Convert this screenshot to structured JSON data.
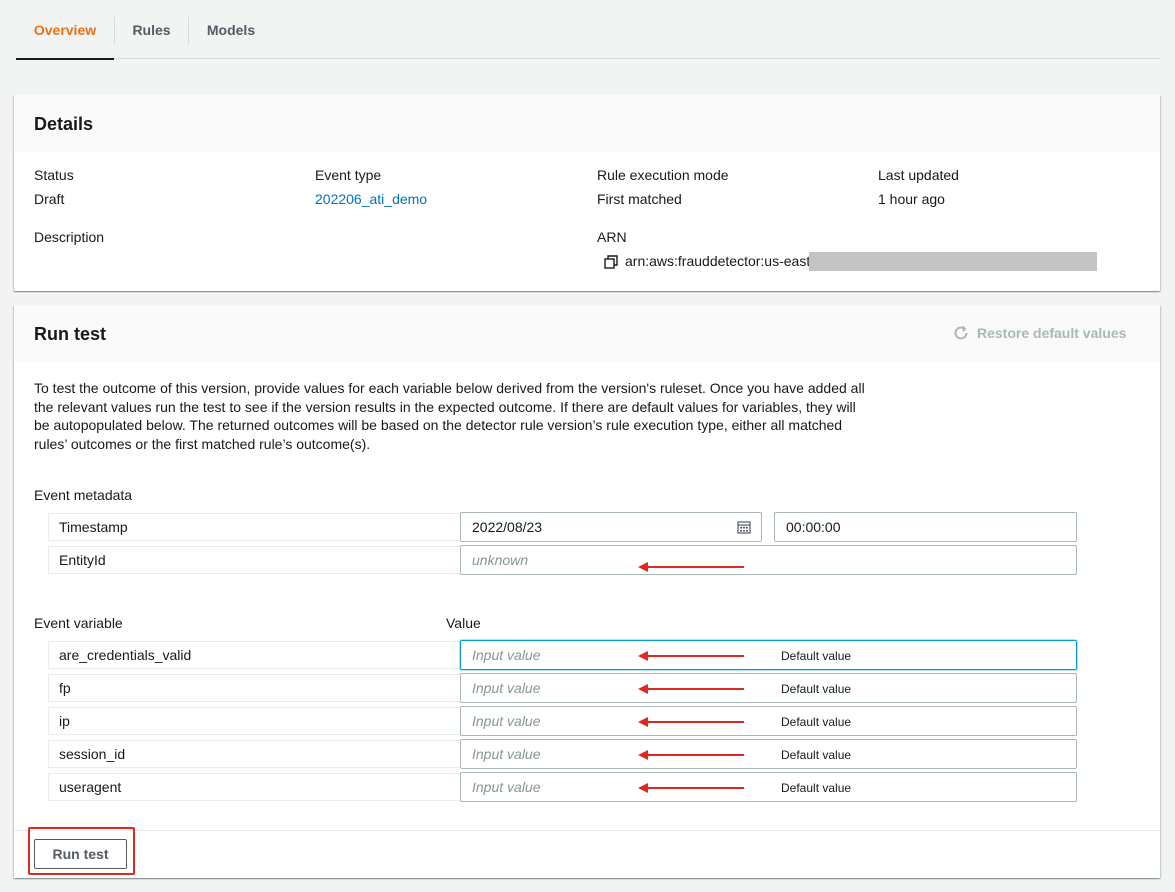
{
  "tabs": [
    {
      "label": "Overview",
      "active": true
    },
    {
      "label": "Rules",
      "active": false
    },
    {
      "label": "Models",
      "active": false
    }
  ],
  "details": {
    "title": "Details",
    "status_label": "Status",
    "status_value": "Draft",
    "event_type_label": "Event type",
    "event_type_value": "202206_ati_demo",
    "rule_mode_label": "Rule execution mode",
    "rule_mode_value": "First matched",
    "last_updated_label": "Last updated",
    "last_updated_value": "1 hour ago",
    "description_label": "Description",
    "arn_label": "ARN",
    "arn_value": "arn:aws:frauddetector:us-east-"
  },
  "run_test": {
    "title": "Run test",
    "restore_label": "Restore default values",
    "description": "To test the outcome of this version, provide values for each variable below derived from the version's ruleset. Once you have added all the relevant values run the test to see if the version results in the expected outcome. If there are default values for variables, they will be autopopulated below. The returned outcomes will be based on the detector rule version’s rule execution type, either all matched rules’ outcomes or the first matched rule’s outcome(s).",
    "event_metadata_label": "Event metadata",
    "timestamp_label": "Timestamp",
    "timestamp_date": "2022/08/23",
    "timestamp_time": "00:00:00",
    "entityid_label": "EntityId",
    "entityid_placeholder": "unknown",
    "event_variable_label": "Event variable",
    "value_label": "Value",
    "variables": [
      {
        "name": "are_credentials_valid",
        "placeholder": "Input value",
        "default_label": "Default value"
      },
      {
        "name": "fp",
        "placeholder": "Input value",
        "default_label": "Default value"
      },
      {
        "name": "ip",
        "placeholder": "Input value",
        "default_label": "Default value"
      },
      {
        "name": "session_id",
        "placeholder": "Input value",
        "default_label": "Default value"
      },
      {
        "name": "useragent",
        "placeholder": "Input value",
        "default_label": "Default value"
      }
    ],
    "run_button_label": "Run test"
  },
  "colors": {
    "accent_orange": "#ec7211",
    "link_blue": "#0073bb",
    "annotation_red": "#e0281f",
    "focus_blue": "#00a1c9"
  }
}
